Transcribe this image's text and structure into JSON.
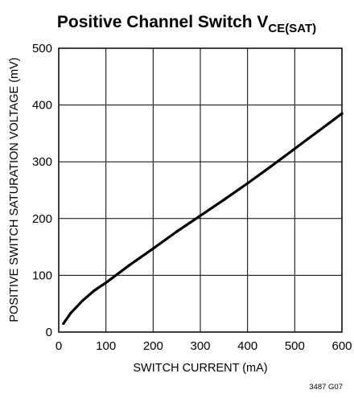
{
  "chart_data": {
    "type": "line",
    "title": "Positive Channel Switch V",
    "title_subscript": "CE(SAT)",
    "xlabel": "SWITCH CURRENT (mA)",
    "ylabel": "POSITIVE SWITCH SATURATION VOLTAGE (mV)",
    "xlim": [
      0,
      600
    ],
    "ylim": [
      0,
      500
    ],
    "x_ticks": [
      "0",
      "100",
      "200",
      "300",
      "400",
      "500",
      "600"
    ],
    "y_ticks": [
      "0",
      "100",
      "200",
      "300",
      "400",
      "500"
    ],
    "grid": true,
    "series": [
      {
        "x": [
          10,
          25,
          50,
          75,
          100,
          150,
          200,
          250,
          300,
          350,
          400,
          450,
          500,
          550,
          600
        ],
        "y": [
          15,
          33,
          55,
          73,
          87,
          118,
          147,
          177,
          205,
          233,
          262,
          292,
          323,
          354,
          385
        ]
      }
    ],
    "figure_id": "3487 G07"
  }
}
